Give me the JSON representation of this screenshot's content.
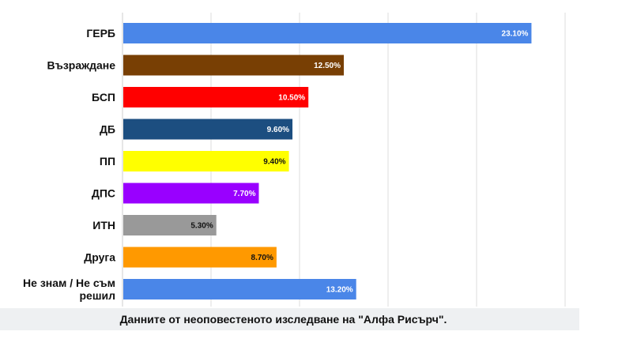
{
  "chart_data": {
    "type": "bar",
    "orientation": "horizontal",
    "categories": [
      "ГЕРБ",
      "Възраждане",
      "БСП",
      "ДБ",
      "ПП",
      "ДПС",
      "ИТН",
      "Друга",
      "Не знам / Не съм решил"
    ],
    "values": [
      23.1,
      12.5,
      10.5,
      9.6,
      9.4,
      7.7,
      5.3,
      8.7,
      13.2
    ],
    "value_labels": [
      "23.10%",
      "12.50%",
      "10.50%",
      "9.60%",
      "9.40%",
      "7.70%",
      "5.30%",
      "8.70%",
      "13.20%"
    ],
    "colors": [
      "#4a86e8",
      "#783f04",
      "#ff0000",
      "#1c4e80",
      "#ffff00",
      "#9900ff",
      "#999999",
      "#ff9900",
      "#4a86e8"
    ],
    "value_label_colors": [
      "#ffffff",
      "#ffffff",
      "#ffffff",
      "#ffffff",
      "#111111",
      "#ffffff",
      "#111111",
      "#111111",
      "#ffffff"
    ],
    "title": "",
    "xlabel": "",
    "ylabel": "",
    "xlim": [
      0,
      25
    ],
    "grid": true,
    "gridline_values": [
      0,
      5,
      10,
      15,
      20,
      25
    ]
  },
  "caption": "Данните от неоповестеното изследване на \"Алфа Рисърч\"."
}
